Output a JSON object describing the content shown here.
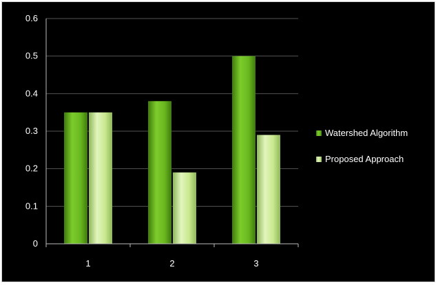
{
  "chart_data": {
    "type": "bar",
    "categories": [
      "1",
      "2",
      "3"
    ],
    "series": [
      {
        "name": "Watershed Algorithm",
        "values": [
          0.35,
          0.38,
          0.5
        ],
        "color": "#6ab820"
      },
      {
        "name": "Proposed Approach",
        "values": [
          0.35,
          0.19,
          0.29
        ],
        "color": "#c9e88e"
      }
    ],
    "ylim": [
      0,
      0.6
    ],
    "yticks": [
      "0",
      "0.1",
      "0.2",
      "0.3",
      "0.4",
      "0.5",
      "0.6"
    ],
    "title": "",
    "xlabel": "",
    "ylabel": "",
    "grid": true,
    "legend_position": "right",
    "background": "#000000",
    "gridline_color": "#555555"
  }
}
